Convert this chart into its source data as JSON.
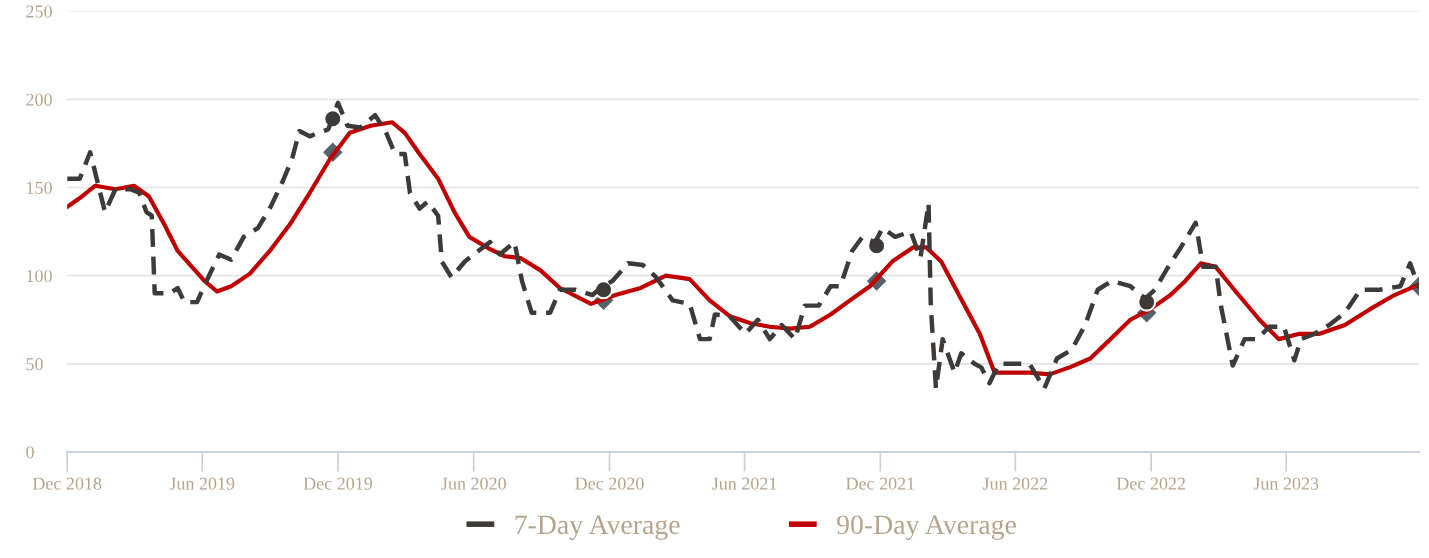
{
  "chart_data": {
    "type": "line",
    "xlim": [
      "2018-12-01",
      "2023-11-27"
    ],
    "xticks": [
      {
        "value": "2018-12-01",
        "label": "Dec 2018"
      },
      {
        "value": "2019-06-01",
        "label": "Jun 2019"
      },
      {
        "value": "2019-12-01",
        "label": "Dec 2019"
      },
      {
        "value": "2020-06-01",
        "label": "Jun 2020"
      },
      {
        "value": "2020-12-01",
        "label": "Dec 2020"
      },
      {
        "value": "2021-06-01",
        "label": "Jun 2021"
      },
      {
        "value": "2021-12-01",
        "label": "Dec 2021"
      },
      {
        "value": "2022-06-01",
        "label": "Jun 2022"
      },
      {
        "value": "2022-12-01",
        "label": "Dec 2022"
      },
      {
        "value": "2023-06-01",
        "label": "Jun 2023"
      }
    ],
    "ylim": [
      0,
      250
    ],
    "yticks": [
      0,
      50,
      100,
      150,
      200,
      250
    ],
    "grid": "y",
    "legend": "bottom",
    "series": [
      {
        "name": "7-Day Average",
        "color": "#3d3a37",
        "line_style": "dashed",
        "marker": "none",
        "x": [
          "2018-12-01",
          "2018-12-18",
          "2019-01-01",
          "2019-01-21",
          "2019-02-04",
          "2019-02-24",
          "2019-03-08",
          "2019-03-18",
          "2019-03-25",
          "2019-03-29",
          "2019-04-18",
          "2019-04-29",
          "2019-05-08",
          "2019-05-25",
          "2019-06-08",
          "2019-06-24",
          "2019-07-10",
          "2019-07-27",
          "2019-08-15",
          "2019-08-31",
          "2019-09-16",
          "2019-09-30",
          "2019-10-10",
          "2019-10-24",
          "2019-11-04",
          "2019-11-18",
          "2019-12-01",
          "2019-12-14",
          "2019-12-31",
          "2020-01-20",
          "2020-02-03",
          "2020-02-16",
          "2020-02-29",
          "2020-03-07",
          "2020-03-20",
          "2020-03-31",
          "2020-04-14",
          "2020-04-19",
          "2020-05-02",
          "2020-05-20",
          "2020-06-07",
          "2020-06-23",
          "2020-07-06",
          "2020-07-26",
          "2020-08-05",
          "2020-08-18",
          "2020-09-12",
          "2020-09-25",
          "2020-10-16",
          "2020-11-08",
          "2020-11-19",
          "2020-12-05",
          "2020-12-26",
          "2021-01-15",
          "2021-02-02",
          "2021-02-24",
          "2021-03-19",
          "2021-04-02",
          "2021-04-15",
          "2021-04-22",
          "2021-05-12",
          "2021-06-02",
          "2021-06-19",
          "2021-07-05",
          "2021-07-21",
          "2021-08-08",
          "2021-08-21",
          "2021-09-09",
          "2021-09-25",
          "2021-10-08",
          "2021-10-24",
          "2021-11-07",
          "2021-11-24",
          "2021-12-04",
          "2021-12-21",
          "2022-01-11",
          "2022-01-24",
          "2022-02-04",
          "2022-02-07",
          "2022-02-14",
          "2022-02-23",
          "2022-03-11",
          "2022-03-20",
          "2022-04-07",
          "2022-04-16",
          "2022-04-27",
          "2022-05-10",
          "2022-05-30",
          "2022-06-20",
          "2022-07-10",
          "2022-07-27",
          "2022-08-16",
          "2022-09-03",
          "2022-09-20",
          "2022-10-09",
          "2022-11-03",
          "2022-11-23",
          "2022-12-06",
          "2022-12-24",
          "2023-01-10",
          "2023-01-30",
          "2023-02-09",
          "2023-02-26",
          "2023-03-05",
          "2023-03-21",
          "2023-04-06",
          "2023-04-23",
          "2023-05-09",
          "2023-05-29",
          "2023-06-12",
          "2023-06-21",
          "2023-07-09",
          "2023-07-29",
          "2023-08-19",
          "2023-09-09",
          "2023-10-05",
          "2023-11-02",
          "2023-11-15",
          "2023-11-27"
        ],
        "values": [
          155,
          155,
          170,
          136,
          149,
          149,
          147,
          136,
          134,
          90,
          90,
          93,
          85,
          85,
          98,
          112,
          109,
          122,
          127,
          138,
          152,
          166,
          182,
          179,
          181,
          183,
          198,
          185,
          184,
          191,
          182,
          169,
          169,
          147,
          138,
          142,
          134,
          108,
          99,
          108,
          114,
          119,
          112,
          119,
          97,
          79,
          79,
          92,
          92,
          89,
          93,
          97,
          107,
          106,
          99,
          86,
          84,
          64,
          64,
          78,
          77,
          67,
          75,
          64,
          72,
          64,
          83,
          83,
          94,
          94,
          114,
          122,
          119,
          127,
          122,
          125,
          110,
          141,
          83,
          36,
          64,
          45,
          56,
          50,
          48,
          39,
          50,
          50,
          50,
          36,
          53,
          58,
          72,
          92,
          97,
          94,
          87,
          92,
          105,
          116,
          130,
          105,
          105,
          83,
          49,
          64,
          64,
          71,
          71,
          52,
          64,
          67,
          72,
          79,
          92,
          92,
          94,
          107,
          93
        ]
      },
      {
        "name": "90-Day Average",
        "color": "#c00000",
        "line_style": "solid",
        "marker": "none",
        "x": [
          "2018-12-01",
          "2018-12-18",
          "2019-01-08",
          "2019-02-04",
          "2019-03-01",
          "2019-03-21",
          "2019-04-11",
          "2019-04-29",
          "2019-06-04",
          "2019-06-21",
          "2019-07-10",
          "2019-08-04",
          "2019-08-31",
          "2019-09-27",
          "2019-10-24",
          "2019-11-20",
          "2019-12-17",
          "2020-01-14",
          "2020-02-12",
          "2020-02-29",
          "2020-03-20",
          "2020-04-14",
          "2020-05-06",
          "2020-05-26",
          "2020-06-23",
          "2020-07-13",
          "2020-08-03",
          "2020-08-30",
          "2020-09-25",
          "2020-11-06",
          "2020-12-09",
          "2021-01-12",
          "2021-02-15",
          "2021-03-19",
          "2021-04-15",
          "2021-05-12",
          "2021-06-09",
          "2021-07-05",
          "2021-08-01",
          "2021-08-28",
          "2021-09-25",
          "2021-10-21",
          "2021-11-17",
          "2021-12-17",
          "2022-01-14",
          "2022-02-01",
          "2022-02-21",
          "2022-03-17",
          "2022-04-14",
          "2022-05-04",
          "2022-05-24",
          "2022-06-20",
          "2022-07-17",
          "2022-08-13",
          "2022-09-10",
          "2022-10-07",
          "2022-11-03",
          "2022-11-30",
          "2022-12-27",
          "2023-01-16",
          "2023-02-06",
          "2023-02-26",
          "2023-03-23",
          "2023-04-26",
          "2023-05-22",
          "2023-06-19",
          "2023-07-16",
          "2023-08-19",
          "2023-09-22",
          "2023-10-25",
          "2023-11-27"
        ],
        "values": [
          139,
          144,
          151,
          149,
          151,
          145,
          129,
          114,
          97,
          91,
          94,
          101,
          114,
          129,
          147,
          166,
          181,
          185,
          187,
          181,
          169,
          155,
          136,
          122,
          115,
          111,
          110,
          103,
          93,
          84,
          89,
          93,
          100,
          98,
          86,
          77,
          73,
          71,
          70,
          71,
          78,
          86,
          94,
          108,
          116,
          116,
          108,
          89,
          67,
          45,
          45,
          45,
          44,
          48,
          53,
          64,
          75,
          81,
          89,
          97,
          107,
          105,
          92,
          75,
          64,
          67,
          67,
          72,
          81,
          89,
          95
        ]
      },
      {
        "type": "scatter",
        "color": "#3d3a37",
        "marker": "circle",
        "x": [
          "2019-11-24",
          "2020-11-23",
          "2021-11-26",
          "2022-11-25"
        ],
        "values": [
          189,
          92,
          117,
          85
        ]
      },
      {
        "type": "scatter",
        "color": "#56626a",
        "marker": "diamond",
        "x": [
          "2019-11-24",
          "2020-11-23",
          "2021-11-26",
          "2022-11-25",
          "2023-11-27"
        ],
        "values": [
          170,
          86,
          97,
          79,
          94
        ]
      }
    ]
  }
}
